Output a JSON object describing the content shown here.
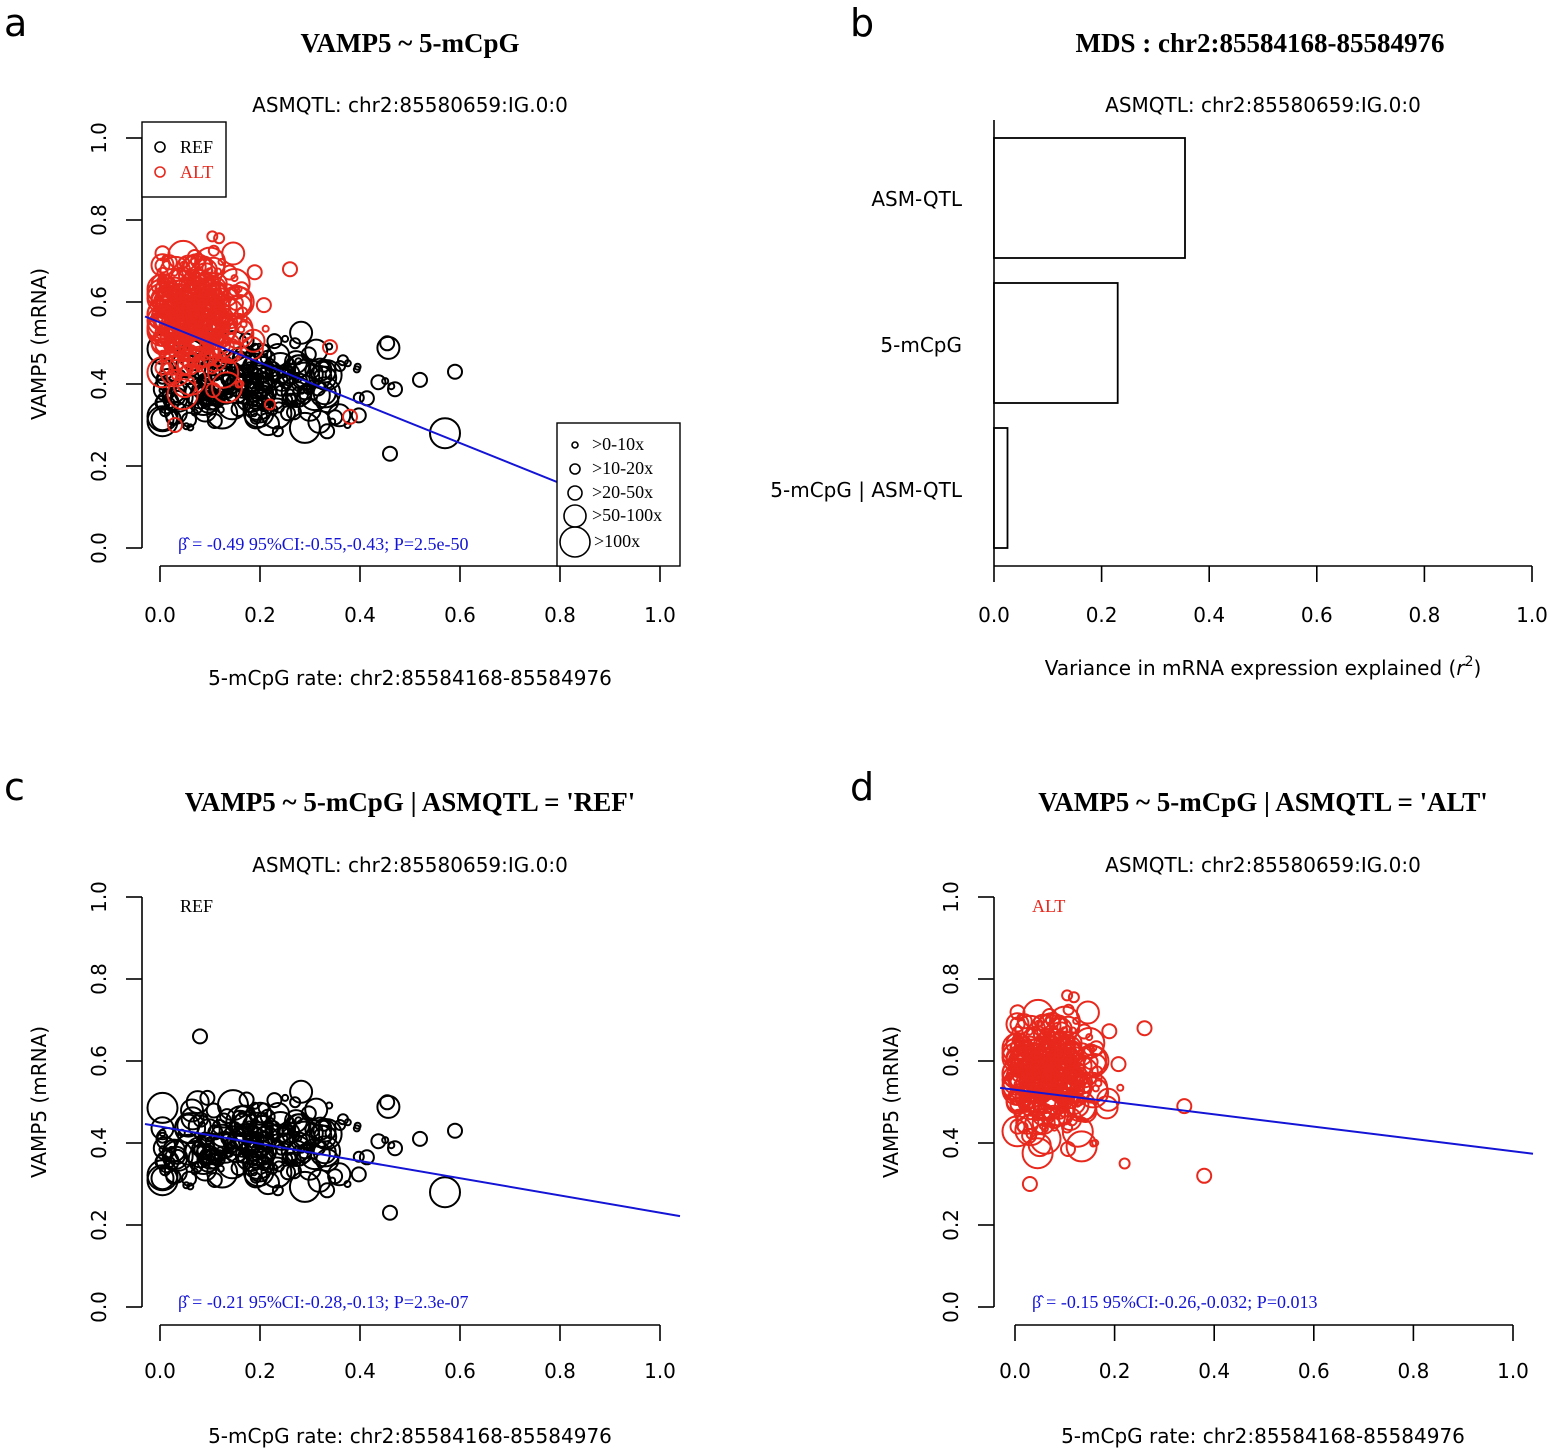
{
  "chart_data": [
    {
      "id": "a",
      "letter": "a",
      "type": "scatter",
      "title": "VAMP5 ~ 5-mCpG",
      "subtitle": "ASMQTL: chr2:85580659:IG.0:0",
      "xlabel": "5-mCpG rate: chr2:85584168-85584976",
      "ylabel": "VAMP5 (mRNA)",
      "xlim": [
        0,
        1
      ],
      "ylim": [
        0,
        1
      ],
      "xticks": [
        "0.0",
        "0.2",
        "0.4",
        "0.6",
        "0.8",
        "1.0"
      ],
      "yticks": [
        "0.0",
        "0.2",
        "0.4",
        "0.6",
        "0.8",
        "1.0"
      ],
      "colors": {
        "REF": "#000000",
        "ALT": "#e8281c",
        "fit": "#1414d6"
      },
      "legend_groups": [
        {
          "label": "REF",
          "color": "#000000"
        },
        {
          "label": "ALT",
          "color": "#e8281c"
        }
      ],
      "legend_sizes": [
        ">0-10x",
        ">10-20x",
        ">20-50x",
        ">50-100x",
        ">100x"
      ],
      "fit": {
        "intercept": 0.55,
        "slope": -0.49
      },
      "beta_symbol": "β̂",
      "annotation": "= -0.49 95%CI:-0.55,-0.43; P=2.5e-50",
      "series": [
        {
          "name": "REF",
          "color": "#000000",
          "cloud": {
            "x_mean": 0.2,
            "x_sd": 0.11,
            "y_mean": 0.4,
            "y_sd": 0.05
          },
          "n": 230
        },
        {
          "name": "ALT",
          "color": "#e8281c",
          "cloud": {
            "x_mean": 0.07,
            "x_sd": 0.05,
            "y_mean": 0.56,
            "y_sd": 0.07
          },
          "n": 340
        }
      ],
      "outliers": [
        {
          "x": 0.57,
          "y": 0.28,
          "size": 4,
          "color": "#000000"
        },
        {
          "x": 0.59,
          "y": 0.43,
          "size": 2,
          "color": "#000000"
        },
        {
          "x": 0.52,
          "y": 0.41,
          "size": 2,
          "color": "#000000"
        },
        {
          "x": 0.46,
          "y": 0.23,
          "size": 2,
          "color": "#000000"
        },
        {
          "x": 0.26,
          "y": 0.68,
          "size": 2,
          "color": "#e8281c"
        },
        {
          "x": 0.03,
          "y": 0.3,
          "size": 2,
          "color": "#e8281c"
        },
        {
          "x": 0.34,
          "y": 0.49,
          "size": 2,
          "color": "#e8281c"
        },
        {
          "x": 0.38,
          "y": 0.32,
          "size": 2,
          "color": "#e8281c"
        },
        {
          "x": 0.22,
          "y": 0.35,
          "size": 1,
          "color": "#e8281c"
        }
      ]
    },
    {
      "id": "b",
      "letter": "b",
      "type": "bar",
      "orientation": "horizontal",
      "title": "MDS : chr2:85584168-85584976",
      "subtitle": "ASMQTL: chr2:85580659:IG.0:0",
      "xlabel": "Variance in mRNA expression explained (r²)",
      "xlabel_main": "Variance in mRNA expression explained (",
      "xlabel_var": "r",
      "xlabel_sup": "2",
      "xlabel_close": ")",
      "xlim": [
        0,
        1
      ],
      "xticks": [
        "0.0",
        "0.2",
        "0.4",
        "0.6",
        "0.8",
        "1.0"
      ],
      "categories": [
        "ASM-QTL",
        "5-mCpG",
        "5-mCpG | ASM-QTL"
      ],
      "values": [
        0.355,
        0.23,
        0.025
      ]
    },
    {
      "id": "c",
      "letter": "c",
      "type": "scatter",
      "title": "VAMP5 ~ 5-mCpG  | ASMQTL = 'REF'",
      "subtitle": "ASMQTL: chr2:85580659:IG.0:0",
      "xlabel": "5-mCpG rate: chr2:85584168-85584976",
      "ylabel": "VAMP5 (mRNA)",
      "xlim": [
        0,
        1
      ],
      "ylim": [
        0,
        1
      ],
      "xticks": [
        "0.0",
        "0.2",
        "0.4",
        "0.6",
        "0.8",
        "1.0"
      ],
      "yticks": [
        "0.0",
        "0.2",
        "0.4",
        "0.6",
        "0.8",
        "1.0"
      ],
      "group_label": "REF",
      "group_color": "#000000",
      "fit": {
        "intercept": 0.44,
        "slope": -0.21
      },
      "fit_color": "#1414d6",
      "beta_symbol": "β̂",
      "annotation": "= -0.21 95%CI:-0.28,-0.13; P=2.3e-07",
      "series": [
        {
          "name": "REF",
          "color": "#000000",
          "cloud": {
            "x_mean": 0.2,
            "x_sd": 0.11,
            "y_mean": 0.4,
            "y_sd": 0.05
          },
          "n": 230
        }
      ],
      "outliers": [
        {
          "x": 0.57,
          "y": 0.28,
          "size": 4,
          "color": "#000000"
        },
        {
          "x": 0.59,
          "y": 0.43,
          "size": 2,
          "color": "#000000"
        },
        {
          "x": 0.52,
          "y": 0.41,
          "size": 2,
          "color": "#000000"
        },
        {
          "x": 0.46,
          "y": 0.23,
          "size": 2,
          "color": "#000000"
        },
        {
          "x": 0.08,
          "y": 0.66,
          "size": 2,
          "color": "#000000"
        }
      ]
    },
    {
      "id": "d",
      "letter": "d",
      "type": "scatter",
      "title": "VAMP5 ~ 5-mCpG  | ASMQTL = 'ALT'",
      "subtitle": "ASMQTL: chr2:85580659:IG.0:0",
      "xlabel": "5-mCpG rate: chr2:85584168-85584976",
      "ylabel": "VAMP5 (mRNA)",
      "xlim": [
        0,
        1
      ],
      "ylim": [
        0,
        1
      ],
      "xticks": [
        "0.0",
        "0.2",
        "0.4",
        "0.6",
        "0.8",
        "1.0"
      ],
      "yticks": [
        "0.0",
        "0.2",
        "0.4",
        "0.6",
        "0.8",
        "1.0"
      ],
      "group_label": "ALT",
      "group_color": "#e8281c",
      "fit": {
        "intercept": 0.53,
        "slope": -0.15
      },
      "fit_color": "#1414d6",
      "beta_symbol": "β̂",
      "annotation": "= -0.15 95%CI:-0.26,-0.032; P=0.013",
      "series": [
        {
          "name": "ALT",
          "color": "#e8281c",
          "cloud": {
            "x_mean": 0.07,
            "x_sd": 0.05,
            "y_mean": 0.56,
            "y_sd": 0.07
          },
          "n": 340
        }
      ],
      "outliers": [
        {
          "x": 0.26,
          "y": 0.68,
          "size": 2,
          "color": "#e8281c"
        },
        {
          "x": 0.03,
          "y": 0.3,
          "size": 2,
          "color": "#e8281c"
        },
        {
          "x": 0.34,
          "y": 0.49,
          "size": 2,
          "color": "#e8281c"
        },
        {
          "x": 0.38,
          "y": 0.32,
          "size": 2,
          "color": "#e8281c"
        },
        {
          "x": 0.22,
          "y": 0.35,
          "size": 1,
          "color": "#e8281c"
        }
      ]
    }
  ]
}
